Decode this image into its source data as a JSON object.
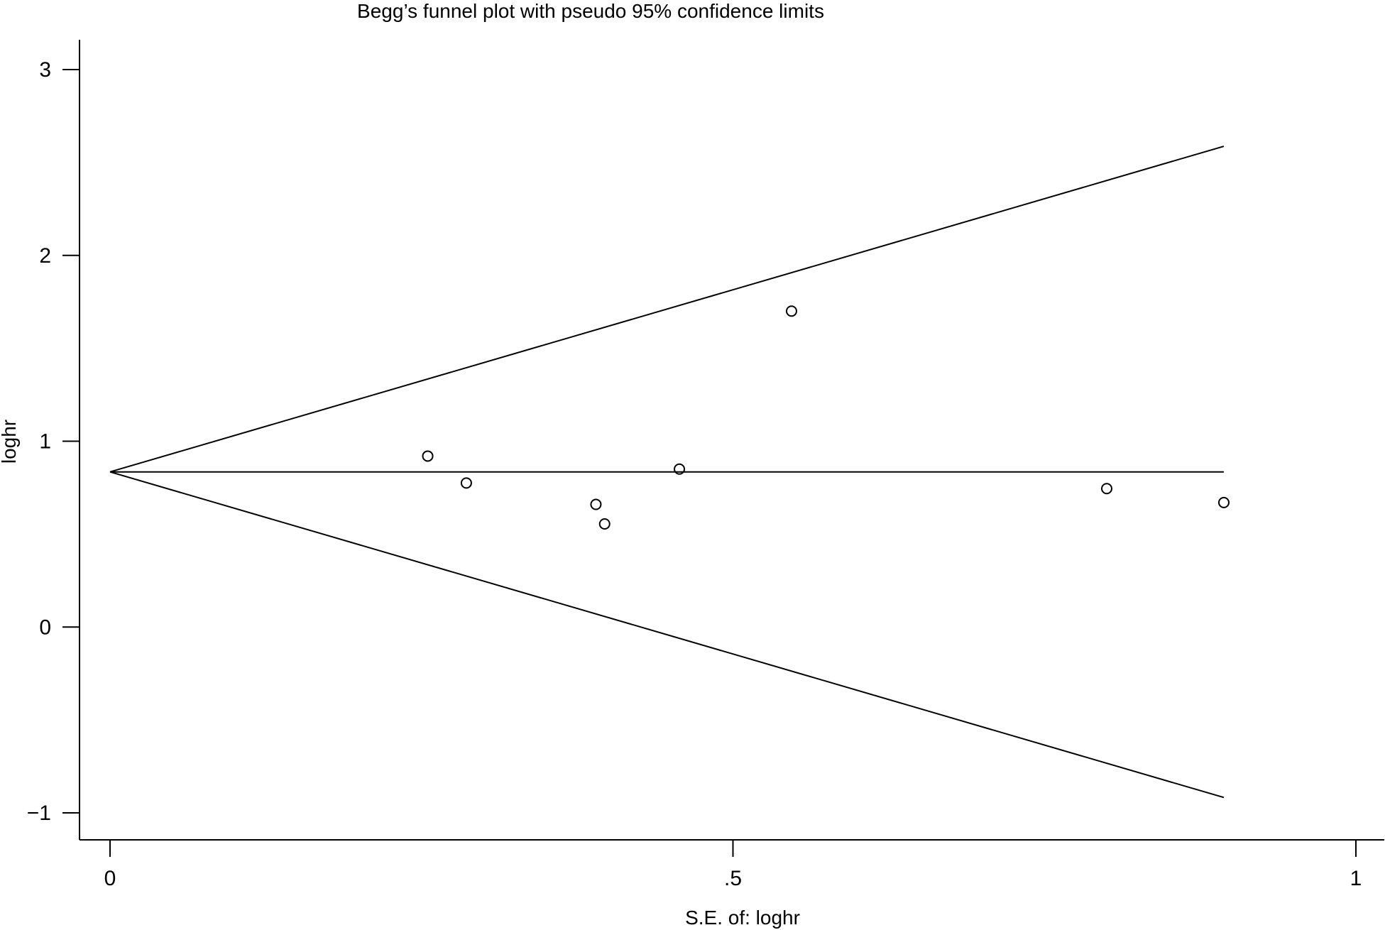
{
  "chart_data": {
    "type": "scatter",
    "title": "Begg’s funnel plot with pseudo 95% confidence limits",
    "xlabel": "S.E. of: loghr",
    "ylabel": "loghr",
    "xlim": [
      0,
      1
    ],
    "ylim": [
      -1,
      3
    ],
    "x_ticks": [
      0,
      0.5,
      1
    ],
    "x_tick_labels": [
      "0",
      ".5",
      "1"
    ],
    "y_ticks": [
      -1,
      0,
      1,
      2,
      3
    ],
    "y_tick_labels": [
      "−1",
      "0",
      "1",
      "2",
      "3"
    ],
    "grid": false,
    "legend": "none",
    "colors": {
      "line": "#000000",
      "marker": "#000000",
      "background": "#ffffff"
    },
    "pooled_estimate": 0.835,
    "confidence_z": 1.96,
    "funnel_se_max": 0.894,
    "points": [
      {
        "x": 0.255,
        "y": 0.92
      },
      {
        "x": 0.286,
        "y": 0.775
      },
      {
        "x": 0.39,
        "y": 0.66
      },
      {
        "x": 0.397,
        "y": 0.555
      },
      {
        "x": 0.457,
        "y": 0.85
      },
      {
        "x": 0.547,
        "y": 1.7
      },
      {
        "x": 0.8,
        "y": 0.745
      },
      {
        "x": 0.894,
        "y": 0.67
      }
    ]
  }
}
